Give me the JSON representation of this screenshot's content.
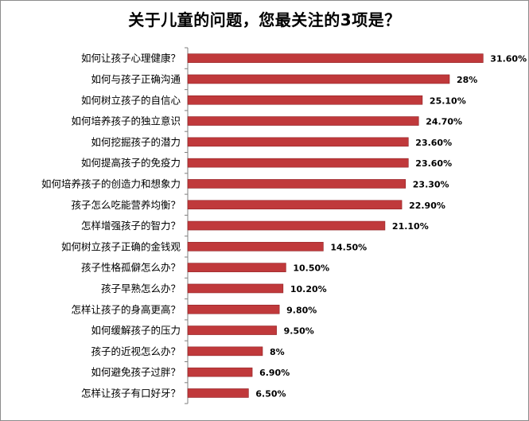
{
  "chart_data": {
    "type": "bar",
    "orientation": "horizontal",
    "title": "关于儿童的问题，您最关注的3项是？",
    "categories": [
      "如何让孩子心理健康？",
      "如何与孩子正确沟通",
      "如何树立孩子的自信心",
      "如何培养孩子的独立意识",
      "如何挖掘孩子的潜力",
      "如何提高孩子的免疫力",
      "如何培养孩子的创造力和想象力",
      "孩子怎么吃能营养均衡？",
      "怎样增强孩子的智力？",
      "如何树立孩子正确的金钱观",
      "孩子性格孤僻怎么办？",
      "孩子早熟怎么办？",
      "怎样让孩子的身高更高？",
      "如何缓解孩子的压力",
      "孩子的近视怎么办？",
      "如何避免孩子过胖？",
      "怎样让孩子有口好牙？"
    ],
    "values": [
      31.6,
      28,
      25.1,
      24.7,
      23.6,
      23.6,
      23.3,
      22.9,
      21.1,
      14.5,
      10.5,
      10.2,
      9.8,
      9.5,
      8,
      6.9,
      6.5
    ],
    "value_labels": [
      "31.60%",
      "28%",
      "25.10%",
      "24.70%",
      "23.60%",
      "23.60%",
      "23.30%",
      "22.90%",
      "21.10%",
      "14.50%",
      "10.50%",
      "10.20%",
      "9.80%",
      "9.50%",
      "8%",
      "6.90%",
      "6.50%"
    ],
    "xlim": [
      0,
      35
    ],
    "grid": false,
    "legend": "none",
    "bar_color": "#C0393B",
    "bar_edge_color": "#8F1F22"
  }
}
